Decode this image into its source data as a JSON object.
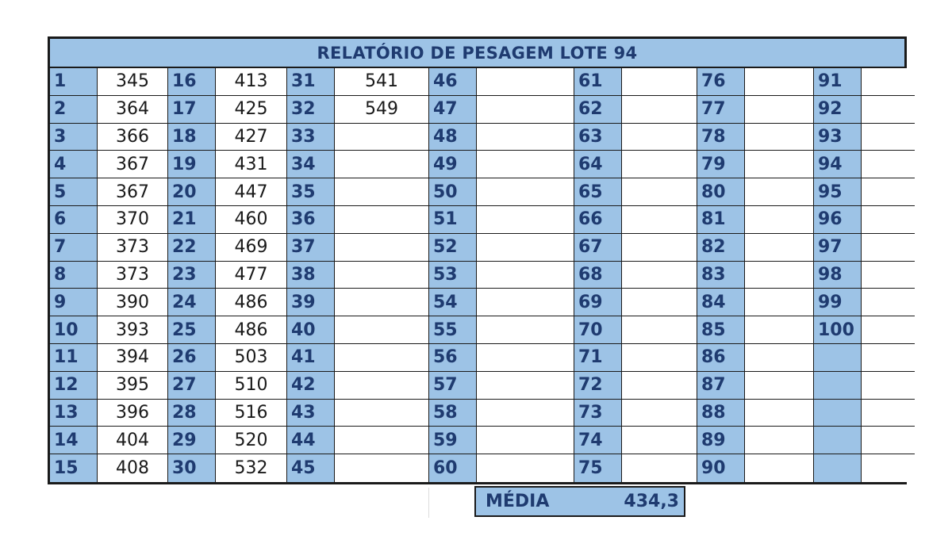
{
  "title": "RELATÓRIO DE PESAGEM LOTE 94",
  "weights": [
    [
      "345",
      "364",
      "366",
      "367",
      "367",
      "370",
      "373",
      "373",
      "390",
      "393",
      "394",
      "395",
      "396",
      "404",
      "408"
    ],
    [
      "413",
      "425",
      "427",
      "431",
      "447",
      "460",
      "469",
      "477",
      "486",
      "486",
      "503",
      "510",
      "516",
      "520",
      "532"
    ],
    [
      "541",
      "549",
      "",
      "",
      "",
      "",
      "",
      "",
      "",
      "",
      "",
      "",
      "",
      "",
      ""
    ],
    [
      "",
      "",
      "",
      "",
      "",
      "",
      "",
      "",
      "",
      "",
      "",
      "",
      "",
      "",
      ""
    ],
    [
      "",
      "",
      "",
      "",
      "",
      "",
      "",
      "",
      "",
      "",
      "",
      "",
      "",
      "",
      ""
    ],
    [
      "",
      "",
      "",
      "",
      "",
      "",
      "",
      "",
      "",
      "",
      "",
      "",
      "",
      "",
      ""
    ],
    [
      "",
      "",
      "",
      "",
      "",
      "",
      "",
      "",
      "",
      "",
      "",
      "",
      "",
      "",
      ""
    ]
  ],
  "media": {
    "label": "MÉDIA",
    "value": "434,3"
  },
  "colors": {
    "header_fill": "#9dc3e6",
    "header_text": "#1f3b70",
    "border": "#1a1a1a"
  }
}
